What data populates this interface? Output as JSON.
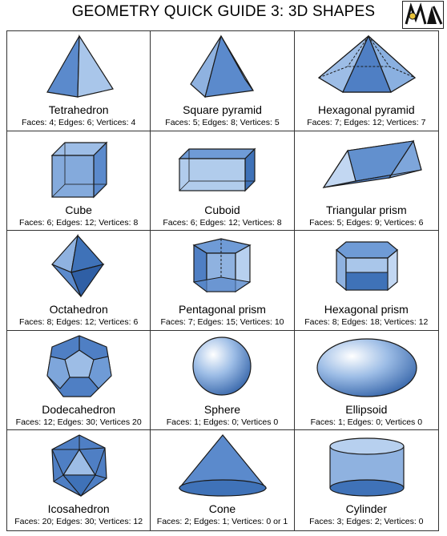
{
  "header": {
    "title": "GEOMETRY QUICK GUIDE 3:  3D SHAPES"
  },
  "colors": {
    "light": "#9dbde6",
    "mid": "#6f9bd6",
    "dark": "#3f72b8",
    "stroke": "#1a1a1a"
  },
  "shapes": [
    {
      "name": "Tetrahedron",
      "info": "Faces: 4; Edges: 6; Vertices: 4",
      "icon": "tetrahedron-icon"
    },
    {
      "name": "Square pyramid",
      "info": "Faces: 5; Edges: 8; Vertices: 5",
      "icon": "square-pyramid-icon"
    },
    {
      "name": "Hexagonal pyramid",
      "info": "Faces: 7; Edges: 12; Vertices: 7",
      "icon": "hexagonal-pyramid-icon"
    },
    {
      "name": "Cube",
      "info": "Faces: 6; Edges: 12; Vertices: 8",
      "icon": "cube-icon"
    },
    {
      "name": "Cuboid",
      "info": "Faces: 6; Edges: 12; Vertices: 8",
      "icon": "cuboid-icon"
    },
    {
      "name": "Triangular prism",
      "info": "Faces: 5; Edges: 9; Vertices: 6",
      "icon": "triangular-prism-icon"
    },
    {
      "name": "Octahedron",
      "info": "Faces: 8; Edges: 12; Vertices: 6",
      "icon": "octahedron-icon"
    },
    {
      "name": "Pentagonal prism",
      "info": "Faces: 7; Edges: 15; Vertices: 10",
      "icon": "pentagonal-prism-icon"
    },
    {
      "name": "Hexagonal prism",
      "info": "Faces: 8; Edges: 18; Vertices: 12",
      "icon": "hexagonal-prism-icon"
    },
    {
      "name": "Dodecahedron",
      "info": "Faces: 12; Edges: 30; Vertices 20",
      "icon": "dodecahedron-icon"
    },
    {
      "name": "Sphere",
      "info": "Faces: 1; Edges: 0; Vertices 0",
      "icon": "sphere-icon"
    },
    {
      "name": "Ellipsoid",
      "info": "Faces: 1; Edges: 0; Vertices 0",
      "icon": "ellipsoid-icon"
    },
    {
      "name": "Icosahedron",
      "info": "Faces: 20; Edges: 30; Vertices: 12",
      "icon": "icosahedron-icon"
    },
    {
      "name": "Cone",
      "info": "Faces: 2; Edges: 1; Vertices: 0 or 1",
      "icon": "cone-icon"
    },
    {
      "name": "Cylinder",
      "info": "Faces: 3; Edges: 2; Vertices: 0",
      "icon": "cylinder-icon"
    }
  ]
}
